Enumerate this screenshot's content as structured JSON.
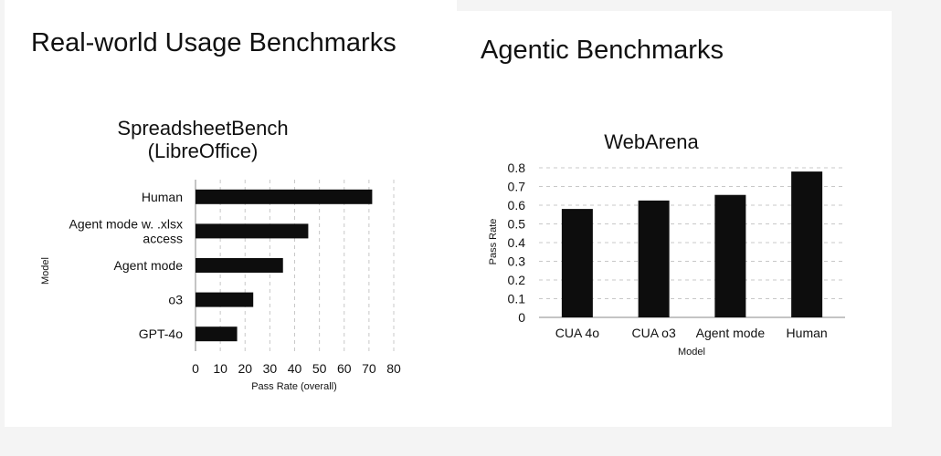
{
  "slide": {
    "left_title": "Real-world Usage Benchmarks",
    "right_title": "Agentic Benchmarks"
  },
  "chart_data": [
    {
      "type": "bar",
      "orientation": "horizontal",
      "title": "SpreadsheetBench\n(LibreOffice)",
      "title_lines": [
        "SpreadsheetBench",
        "(LibreOffice)"
      ],
      "xlabel": "Pass Rate (overall)",
      "ylabel": "Model",
      "categories": [
        "Human",
        "Agent mode w. .xlsx access",
        "Agent mode",
        "o3",
        "GPT-4o"
      ],
      "category_lines": [
        [
          "Human"
        ],
        [
          "Agent mode w. .xlsx",
          "access"
        ],
        [
          "Agent mode"
        ],
        [
          "o3"
        ],
        [
          "GPT-4o"
        ]
      ],
      "values": [
        71.3,
        45.5,
        35.3,
        23.3,
        16.8
      ],
      "xlim": [
        0,
        80
      ],
      "xticks": [
        "0",
        "10",
        "20",
        "30",
        "40",
        "50",
        "60",
        "70",
        "80"
      ],
      "grid": "vertical dashed",
      "bar_color": "#0d0d0d"
    },
    {
      "type": "bar",
      "orientation": "vertical",
      "title": "WebArena",
      "xlabel": "Model",
      "ylabel": "Pass Rate",
      "categories": [
        "CUA 4o",
        "CUA o3",
        "Agent mode",
        "Human"
      ],
      "values": [
        0.58,
        0.625,
        0.655,
        0.78
      ],
      "ylim": [
        0,
        0.8
      ],
      "yticks": [
        "0",
        "0.1",
        "0.2",
        "0.3",
        "0.4",
        "0.5",
        "0.6",
        "0.7",
        "0.8"
      ],
      "grid": "horizontal dashed",
      "bar_color": "#0d0d0d"
    }
  ]
}
